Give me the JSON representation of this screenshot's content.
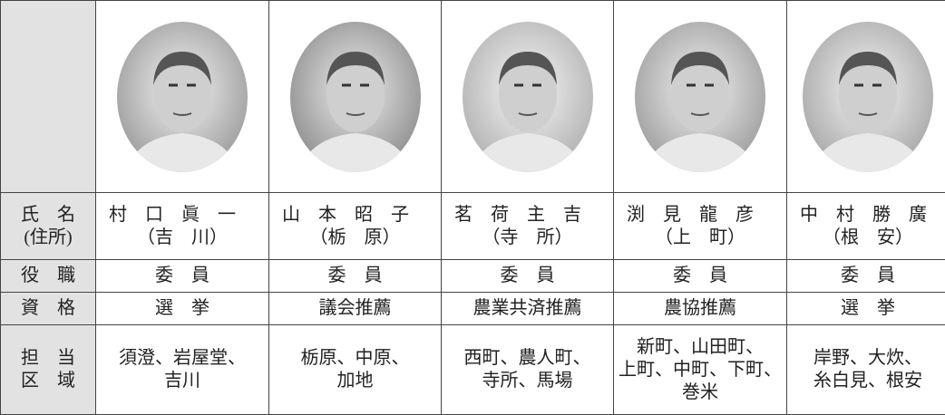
{
  "table": {
    "header_labels": {
      "name": [
        "氏　名",
        "(住所)"
      ],
      "role": "役　職",
      "qualification": "資　格",
      "area": [
        "担　当",
        "区　域"
      ]
    },
    "members": [
      {
        "name": "村　口　眞　一",
        "address": "（吉　川）",
        "role": "委　員",
        "qualification": "選　挙",
        "area": [
          "須澄、岩屋堂、",
          "吉川"
        ]
      },
      {
        "name": "山　本　昭　子",
        "address": "（栃　原）",
        "role": "委　員",
        "qualification": "議会推薦",
        "area": [
          "栃原、中原、",
          "加地"
        ]
      },
      {
        "name": "茗　荷　主　吉",
        "address": "（寺　所）",
        "role": "委　員",
        "qualification": "農業共済推薦",
        "area": [
          "西町、農人町、",
          "寺所、馬場"
        ]
      },
      {
        "name": "渕　見　龍　彦",
        "address": "（上　町）",
        "role": "委　員",
        "qualification": "農協推薦",
        "area": [
          "新町、山田町、",
          "上町、中町、下町、",
          "巻米"
        ]
      },
      {
        "name": "中　村　勝　廣",
        "address": "（根　安）",
        "role": "委　員",
        "qualification": "選　挙",
        "area": [
          "岸野、大炊、",
          "糸白見、根安"
        ]
      }
    ]
  }
}
